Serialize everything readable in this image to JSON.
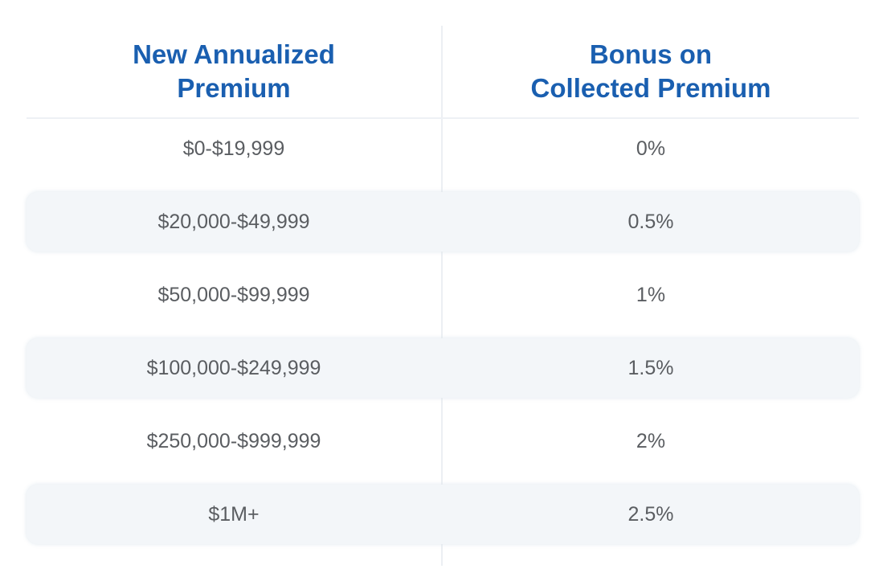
{
  "table": {
    "headers": {
      "premium": "New Annualized Premium",
      "bonus": "Bonus on Collected Premium"
    },
    "rows": [
      {
        "premium": "$0-$19,999",
        "bonus": "0%"
      },
      {
        "premium": "$20,000-$49,999",
        "bonus": "0.5%"
      },
      {
        "premium": "$50,000-$99,999",
        "bonus": "1%"
      },
      {
        "premium": "$100,000-$249,999",
        "bonus": "1.5%"
      },
      {
        "premium": "$250,000-$999,999",
        "bonus": "2%"
      },
      {
        "premium": "$1M+",
        "bonus": "2.5%"
      }
    ]
  },
  "colors": {
    "header_text": "#1a5fb0",
    "body_text": "#5a5d61",
    "stripe": "#f3f6f9"
  }
}
